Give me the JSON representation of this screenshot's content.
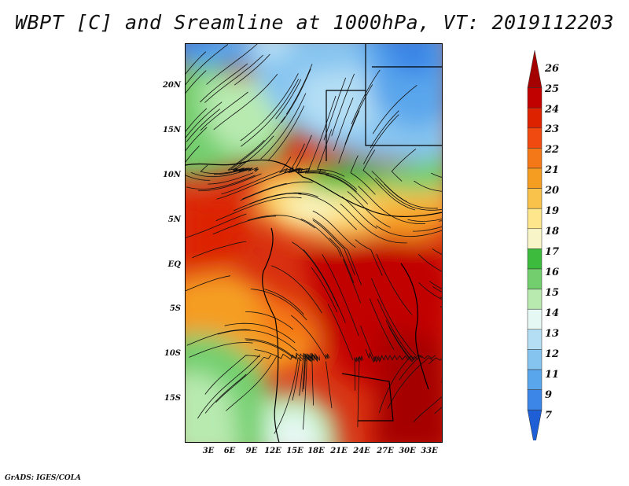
{
  "title": "WBPT [C] and Sreamline at 1000hPa, VT: 2019112203",
  "credit": "GrADS: IGES/COLA",
  "map": {
    "lon_range": [
      0,
      36
    ],
    "lat_range": [
      -20,
      25
    ],
    "lat_ticks": [
      {
        "value": 20,
        "label": "20N"
      },
      {
        "value": 15,
        "label": "15N"
      },
      {
        "value": 10,
        "label": "10N"
      },
      {
        "value": 5,
        "label": "5N"
      },
      {
        "value": 0,
        "label": "EQ"
      },
      {
        "value": -5,
        "label": "5S"
      },
      {
        "value": -10,
        "label": "10S"
      },
      {
        "value": -15,
        "label": "15S"
      }
    ],
    "lon_ticks": [
      {
        "value": 3,
        "label": "3E"
      },
      {
        "value": 6,
        "label": "6E"
      },
      {
        "value": 9,
        "label": "9E"
      },
      {
        "value": 12,
        "label": "12E"
      },
      {
        "value": 15,
        "label": "15E"
      },
      {
        "value": 18,
        "label": "18E"
      },
      {
        "value": 21,
        "label": "21E"
      },
      {
        "value": 24,
        "label": "24E"
      },
      {
        "value": 27,
        "label": "27E"
      },
      {
        "value": 30,
        "label": "30E"
      },
      {
        "value": 33,
        "label": "33E"
      }
    ]
  },
  "colorbar": {
    "labels": [
      "26",
      "25",
      "24",
      "23",
      "22",
      "21",
      "20",
      "19",
      "18",
      "17",
      "16",
      "15",
      "14",
      "13",
      "12",
      "11",
      "9",
      "7"
    ],
    "colors": [
      "#a50000",
      "#c10000",
      "#dd2200",
      "#f04a10",
      "#f57818",
      "#f59d20",
      "#f9c24a",
      "#fde68c",
      "#f8f6c8",
      "#3cbb3c",
      "#73cf6e",
      "#b8eab0",
      "#e6f8f4",
      "#b4def4",
      "#86c4f0",
      "#5aa6ec",
      "#3b86e6",
      "#1f5fd6"
    ]
  }
}
